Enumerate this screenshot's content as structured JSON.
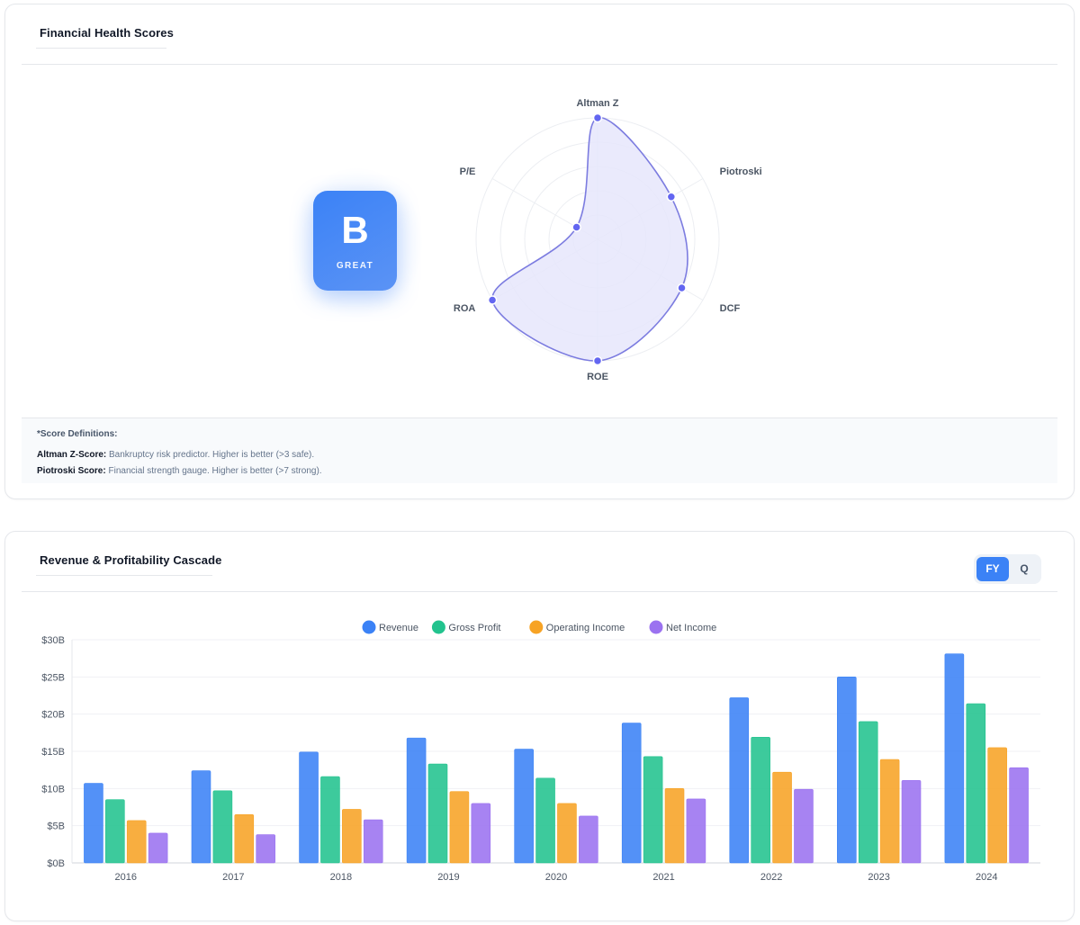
{
  "health": {
    "title": "Financial Health Scores",
    "grade": {
      "letter": "B",
      "label": "GREAT"
    },
    "definitions": {
      "title": "*Score Definitions:",
      "items": [
        {
          "term": "Altman Z-Score:",
          "text": "Bankruptcy risk predictor. Higher is better (>3 safe)."
        },
        {
          "term": "Piotroski Score:",
          "text": "Financial strength gauge. Higher is better (>7 strong)."
        }
      ]
    }
  },
  "revenue": {
    "title": "Revenue & Profitability Cascade",
    "toggle": {
      "fy": "FY",
      "q": "Q",
      "selected": "FY"
    }
  },
  "colors": {
    "accent": "#3b82f6",
    "radar_stroke": "#7c7ce0",
    "radar_fill": "#e6e6fb",
    "radar_point": "#6366f1"
  },
  "chart_data": [
    {
      "type": "radar",
      "axes": [
        "Altman Z",
        "Piotroski",
        "DCF",
        "ROE",
        "ROA",
        "P/E"
      ],
      "values": [
        100,
        70,
        80,
        100,
        100,
        20
      ],
      "range": [
        0,
        100
      ],
      "rings": 5
    },
    {
      "type": "bar",
      "categories": [
        "2016",
        "2017",
        "2018",
        "2019",
        "2020",
        "2021",
        "2022",
        "2023",
        "2024"
      ],
      "series": [
        {
          "name": "Revenue",
          "color": "#3b82f6",
          "values": [
            10.7,
            12.4,
            14.9,
            16.8,
            15.3,
            18.8,
            22.2,
            25.0,
            28.1
          ]
        },
        {
          "name": "Gross Profit",
          "color": "#22c38e",
          "values": [
            8.5,
            9.7,
            11.6,
            13.3,
            11.4,
            14.3,
            16.9,
            19.0,
            21.4
          ]
        },
        {
          "name": "Operating Income",
          "color": "#f7a325",
          "values": [
            5.7,
            6.5,
            7.2,
            9.6,
            8.0,
            10.0,
            12.2,
            13.9,
            15.5
          ]
        },
        {
          "name": "Net Income",
          "color": "#9b72f0",
          "values": [
            4.0,
            3.8,
            5.8,
            8.0,
            6.3,
            8.6,
            9.9,
            11.1,
            12.8
          ]
        }
      ],
      "yticks": [
        "$0B",
        "$5B",
        "$10B",
        "$15B",
        "$20B",
        "$25B",
        "$30B"
      ],
      "ylim": [
        0,
        30
      ],
      "legend": "top-center",
      "grid": true
    }
  ]
}
